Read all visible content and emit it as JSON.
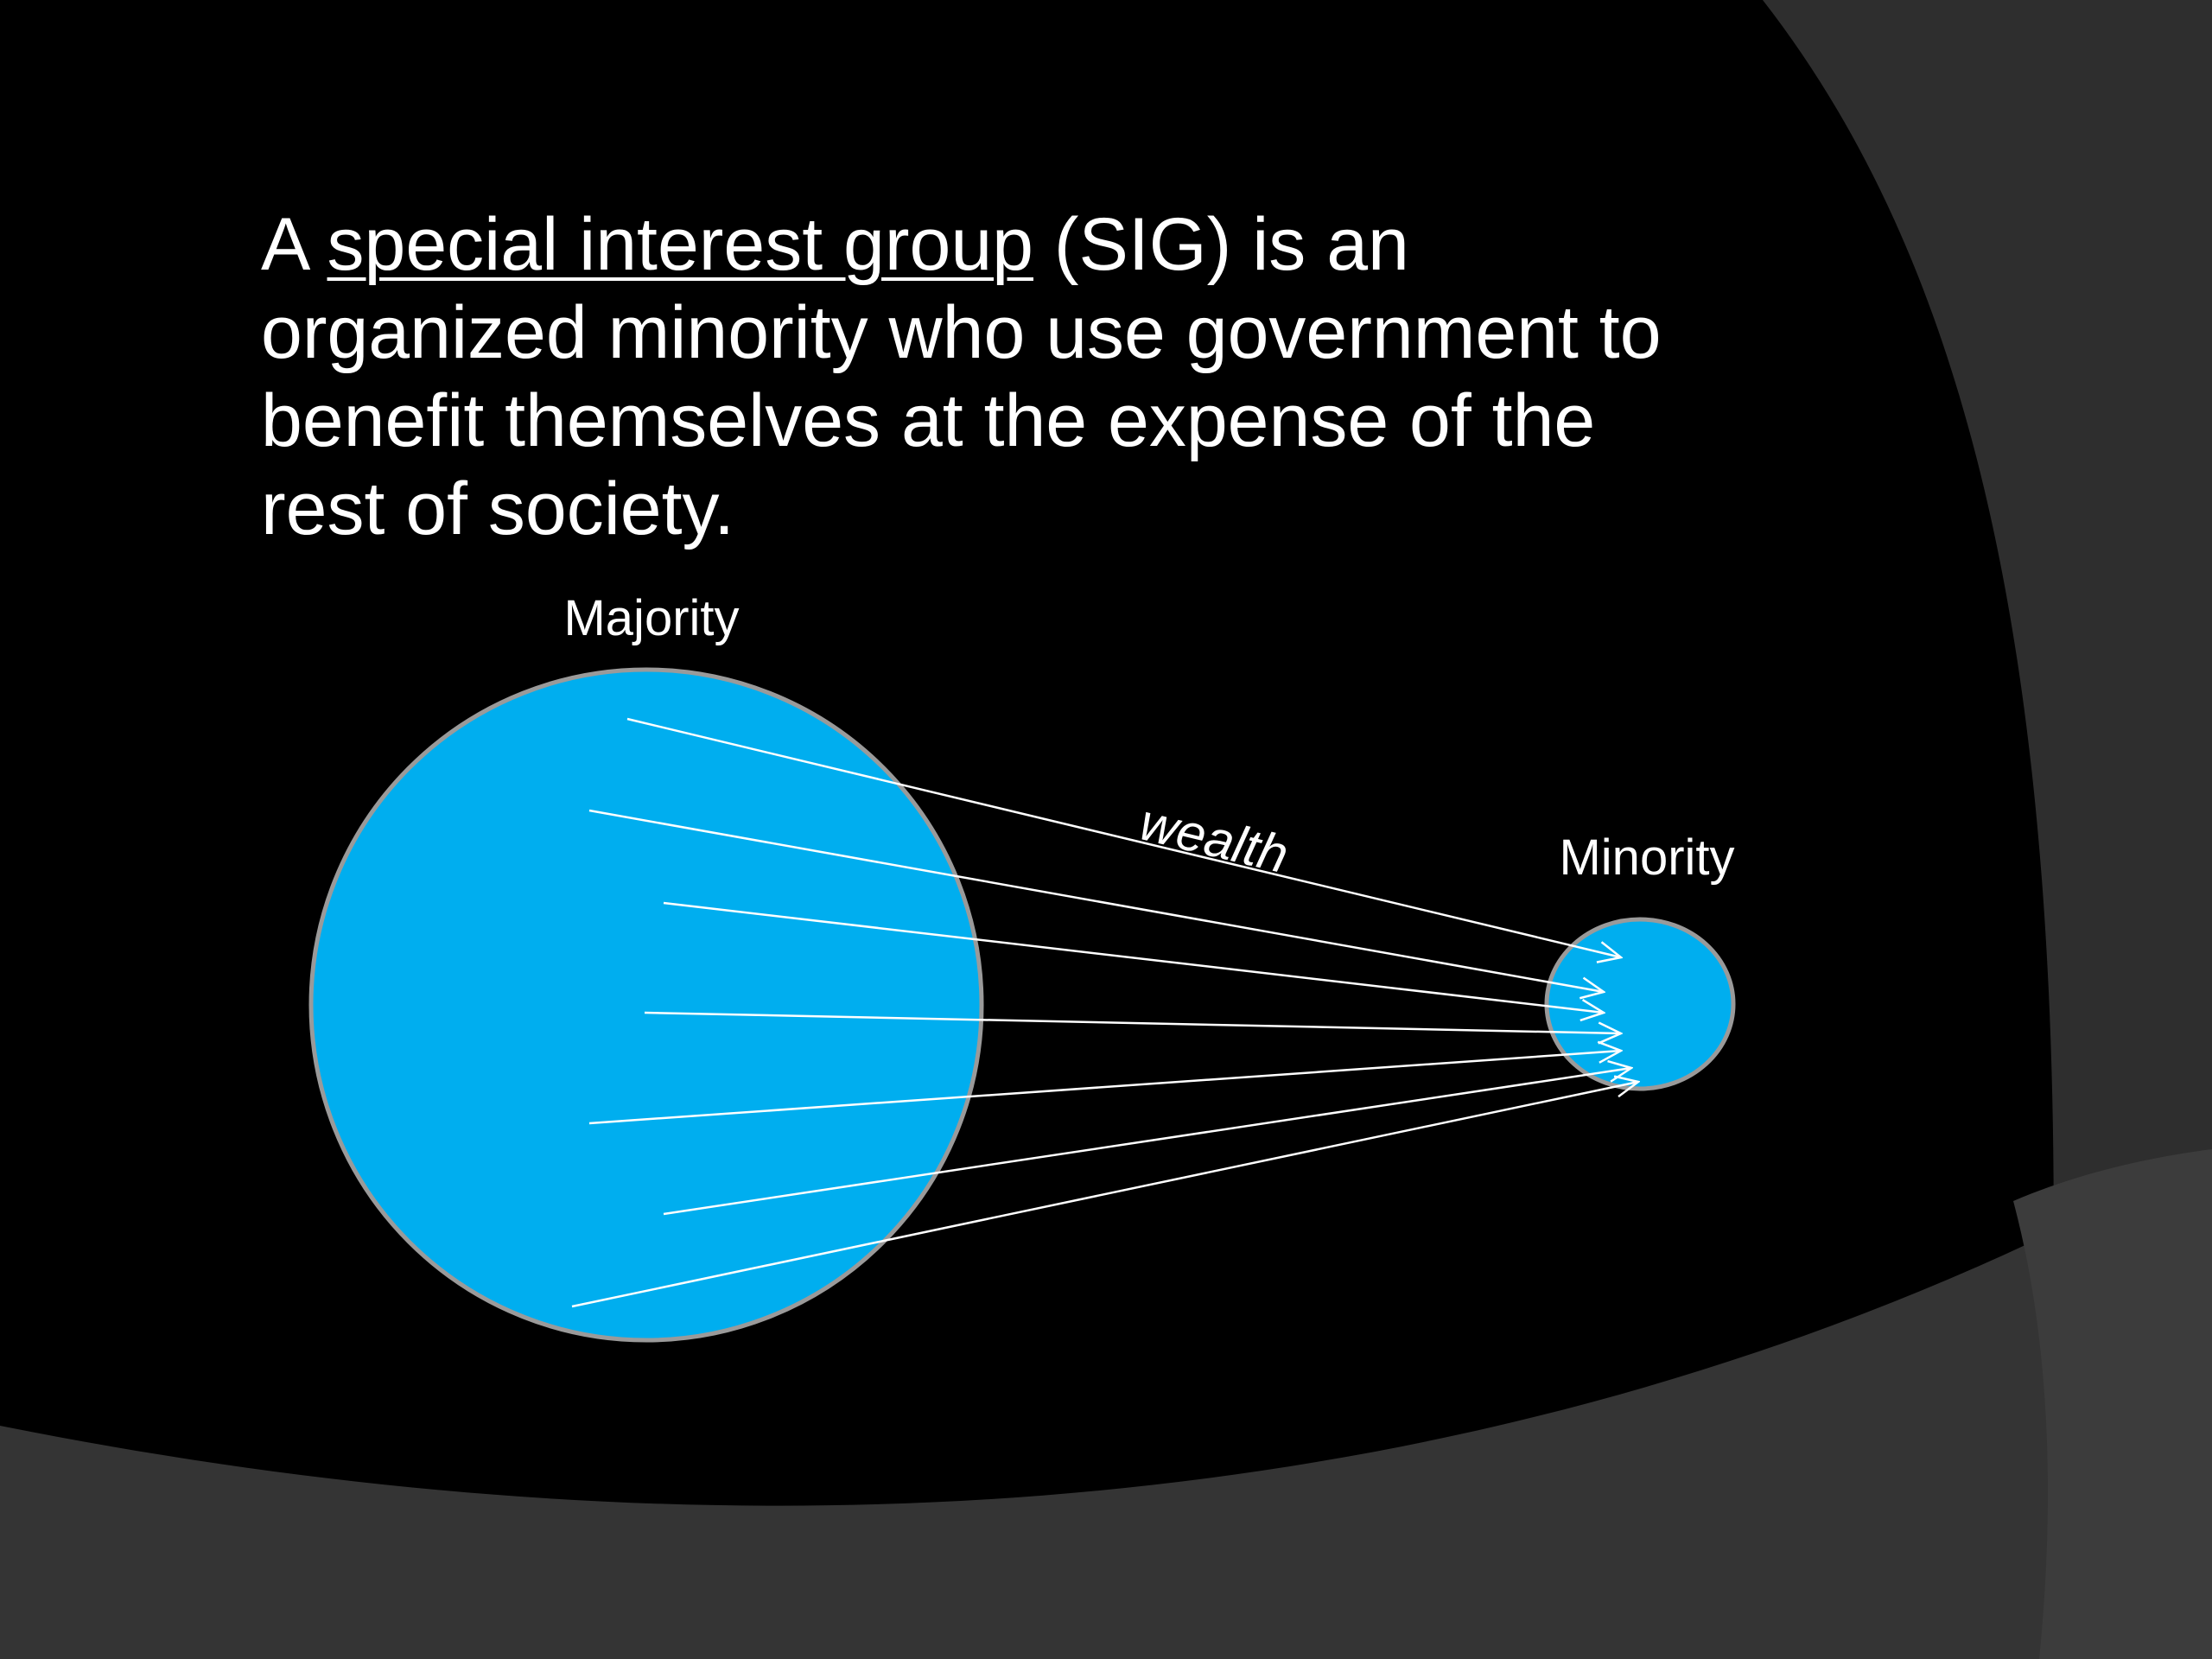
{
  "slide": {
    "text_prefix": "A ",
    "term": "special interest group",
    "text_rest_line1": " (SIG) is an",
    "text_line2": "organized minority who use government to",
    "text_line3": "benefit themselves at the expense of the",
    "text_line4": "rest of society."
  },
  "diagram": {
    "majority_label": "Majority",
    "minority_label": "Minority",
    "flow_label": "wealth",
    "circle_color": "#00AEEF",
    "circle_stroke_color": "#9A9A9A",
    "arrow_color": "#ffffff"
  },
  "theme": {
    "background_color": "#000000",
    "swoosh_color": "#333333"
  }
}
